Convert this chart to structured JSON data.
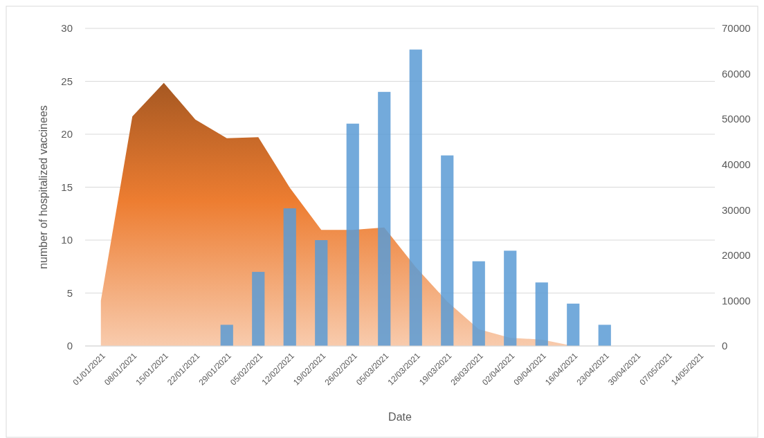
{
  "chart_data": {
    "type": "bar",
    "xlabel": "Date",
    "ylabel": "number of hospitalized vaccinees",
    "categories": [
      "01/01/2021",
      "08/01/2021",
      "15/01/2021",
      "22/01/2021",
      "29/01/2021",
      "05/02/2021",
      "12/02/2021",
      "19/02/2021",
      "26/02/2021",
      "05/03/2021",
      "12/03/2021",
      "19/03/2021",
      "26/03/2021",
      "02/04/2021",
      "09/04/2021",
      "16/04/2021",
      "23/04/2021",
      "30/04/2021",
      "07/05/2021",
      "14/05/2021"
    ],
    "series": [
      {
        "type": "area",
        "axis": "y2",
        "color": "#ed7d31",
        "values": [
          10000,
          50600,
          58000,
          49900,
          45800,
          46000,
          34900,
          25600,
          25600,
          26100,
          17400,
          9800,
          3700,
          1800,
          1400,
          0,
          null,
          null,
          null,
          null
        ]
      },
      {
        "color": "#5b9bd5",
        "values": [
          null,
          null,
          null,
          null,
          2,
          7,
          13,
          10,
          21,
          24,
          28,
          18,
          8,
          9,
          6,
          4,
          2,
          null,
          null,
          null
        ]
      }
    ],
    "ylim": [
      0,
      30
    ],
    "yticks": [
      0,
      5,
      10,
      15,
      20,
      25,
      30
    ],
    "y2lim": [
      0,
      70000
    ],
    "y2ticks": [
      0,
      10000,
      20000,
      30000,
      40000,
      50000,
      60000,
      70000
    ],
    "grid": "y"
  }
}
